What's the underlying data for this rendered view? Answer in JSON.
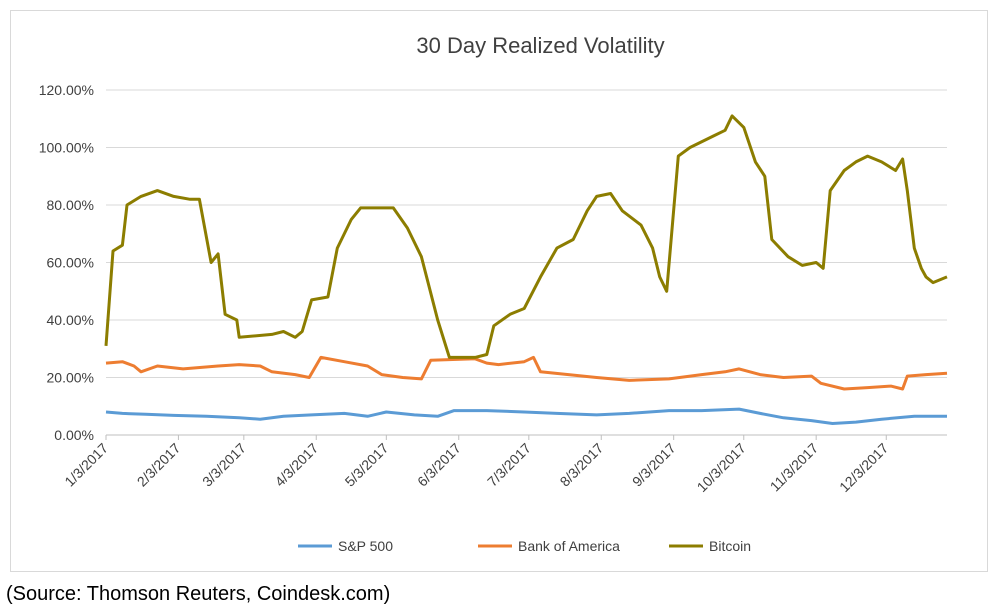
{
  "chart_data": {
    "type": "line",
    "title": "30 Day Realized Volatility",
    "xlabel": "",
    "ylabel": "",
    "ylim": [
      0,
      120
    ],
    "y_ticks": [
      0,
      20,
      40,
      60,
      80,
      100,
      120
    ],
    "y_tick_labels": [
      "0.00%",
      "20.00%",
      "40.00%",
      "60.00%",
      "80.00%",
      "100.00%",
      "120.00%"
    ],
    "x_tick_labels": [
      "1/3/2017",
      "2/3/2017",
      "3/3/2017",
      "4/3/2017",
      "5/3/2017",
      "6/3/2017",
      "7/3/2017",
      "8/3/2017",
      "9/3/2017",
      "10/3/2017",
      "11/3/2017",
      "12/3/2017"
    ],
    "xlim": [
      "2017-01-03",
      "2017-12-29"
    ],
    "grid": "horizontal",
    "legend_position": "bottom",
    "series": [
      {
        "name": "S&P 500",
        "color": "#5b9bd5",
        "points": [
          [
            "2017-01-03",
            8
          ],
          [
            "2017-01-10",
            7.5
          ],
          [
            "2017-01-20",
            7.2
          ],
          [
            "2017-02-01",
            6.8
          ],
          [
            "2017-02-15",
            6.5
          ],
          [
            "2017-03-01",
            6
          ],
          [
            "2017-03-10",
            5.5
          ],
          [
            "2017-03-20",
            6.5
          ],
          [
            "2017-04-01",
            7
          ],
          [
            "2017-04-15",
            7.5
          ],
          [
            "2017-04-25",
            6.5
          ],
          [
            "2017-05-03",
            8
          ],
          [
            "2017-05-15",
            7
          ],
          [
            "2017-05-25",
            6.5
          ],
          [
            "2017-06-01",
            8.5
          ],
          [
            "2017-06-15",
            8.5
          ],
          [
            "2017-07-01",
            8
          ],
          [
            "2017-07-15",
            7.5
          ],
          [
            "2017-08-01",
            7
          ],
          [
            "2017-08-15",
            7.5
          ],
          [
            "2017-09-01",
            8.5
          ],
          [
            "2017-09-15",
            8.5
          ],
          [
            "2017-10-01",
            9
          ],
          [
            "2017-10-10",
            7.5
          ],
          [
            "2017-10-20",
            6
          ],
          [
            "2017-11-01",
            5
          ],
          [
            "2017-11-10",
            4
          ],
          [
            "2017-11-20",
            4.5
          ],
          [
            "2017-12-01",
            5.5
          ],
          [
            "2017-12-15",
            6.5
          ],
          [
            "2017-12-29",
            6.5
          ]
        ]
      },
      {
        "name": "Bank of America",
        "color": "#ed7d31",
        "points": [
          [
            "2017-01-03",
            25
          ],
          [
            "2017-01-10",
            25.5
          ],
          [
            "2017-01-15",
            24
          ],
          [
            "2017-01-18",
            22
          ],
          [
            "2017-01-25",
            24
          ],
          [
            "2017-02-05",
            23
          ],
          [
            "2017-02-20",
            24
          ],
          [
            "2017-03-01",
            24.5
          ],
          [
            "2017-03-10",
            24
          ],
          [
            "2017-03-15",
            22
          ],
          [
            "2017-03-25",
            21
          ],
          [
            "2017-03-31",
            20
          ],
          [
            "2017-04-05",
            27
          ],
          [
            "2017-04-15",
            25.5
          ],
          [
            "2017-04-25",
            24
          ],
          [
            "2017-05-01",
            21
          ],
          [
            "2017-05-10",
            20
          ],
          [
            "2017-05-18",
            19.5
          ],
          [
            "2017-05-22",
            26
          ],
          [
            "2017-06-10",
            26.5
          ],
          [
            "2017-06-15",
            25
          ],
          [
            "2017-06-20",
            24.5
          ],
          [
            "2017-07-01",
            25.5
          ],
          [
            "2017-07-05",
            27
          ],
          [
            "2017-07-08",
            22
          ],
          [
            "2017-07-20",
            21
          ],
          [
            "2017-08-01",
            20
          ],
          [
            "2017-08-15",
            19
          ],
          [
            "2017-09-01",
            19.5
          ],
          [
            "2017-09-15",
            21
          ],
          [
            "2017-09-25",
            22
          ],
          [
            "2017-10-01",
            23
          ],
          [
            "2017-10-10",
            21
          ],
          [
            "2017-10-20",
            20
          ],
          [
            "2017-11-01",
            20.5
          ],
          [
            "2017-11-05",
            18
          ],
          [
            "2017-11-15",
            16
          ],
          [
            "2017-11-25",
            16.5
          ],
          [
            "2017-12-05",
            17
          ],
          [
            "2017-12-10",
            16
          ],
          [
            "2017-12-12",
            20.5
          ],
          [
            "2017-12-20",
            21
          ],
          [
            "2017-12-29",
            21.5
          ]
        ]
      },
      {
        "name": "Bitcoin",
        "color": "#8c7d00",
        "points": [
          [
            "2017-01-03",
            31
          ],
          [
            "2017-01-06",
            64
          ],
          [
            "2017-01-10",
            66
          ],
          [
            "2017-01-12",
            80
          ],
          [
            "2017-01-18",
            83
          ],
          [
            "2017-01-25",
            85
          ],
          [
            "2017-02-01",
            83
          ],
          [
            "2017-02-08",
            82
          ],
          [
            "2017-02-12",
            82
          ],
          [
            "2017-02-17",
            60
          ],
          [
            "2017-02-20",
            63
          ],
          [
            "2017-02-23",
            42
          ],
          [
            "2017-02-28",
            40
          ],
          [
            "2017-03-01",
            34
          ],
          [
            "2017-03-15",
            35
          ],
          [
            "2017-03-20",
            36
          ],
          [
            "2017-03-25",
            34
          ],
          [
            "2017-03-28",
            36
          ],
          [
            "2017-04-01",
            47
          ],
          [
            "2017-04-08",
            48
          ],
          [
            "2017-04-12",
            65
          ],
          [
            "2017-04-18",
            75
          ],
          [
            "2017-04-22",
            79
          ],
          [
            "2017-05-01",
            79
          ],
          [
            "2017-05-06",
            79
          ],
          [
            "2017-05-12",
            72
          ],
          [
            "2017-05-18",
            62
          ],
          [
            "2017-05-25",
            40
          ],
          [
            "2017-05-30",
            27
          ],
          [
            "2017-06-10",
            27
          ],
          [
            "2017-06-15",
            28
          ],
          [
            "2017-06-18",
            38
          ],
          [
            "2017-06-25",
            42
          ],
          [
            "2017-07-01",
            44
          ],
          [
            "2017-07-08",
            55
          ],
          [
            "2017-07-15",
            65
          ],
          [
            "2017-07-22",
            68
          ],
          [
            "2017-07-28",
            78
          ],
          [
            "2017-08-01",
            83
          ],
          [
            "2017-08-07",
            84
          ],
          [
            "2017-08-12",
            78
          ],
          [
            "2017-08-20",
            73
          ],
          [
            "2017-08-25",
            65
          ],
          [
            "2017-08-28",
            55
          ],
          [
            "2017-08-31",
            50
          ],
          [
            "2017-09-05",
            97
          ],
          [
            "2017-09-10",
            100
          ],
          [
            "2017-09-20",
            104
          ],
          [
            "2017-09-25",
            106
          ],
          [
            "2017-09-28",
            111
          ],
          [
            "2017-10-03",
            107
          ],
          [
            "2017-10-08",
            95
          ],
          [
            "2017-10-12",
            90
          ],
          [
            "2017-10-15",
            68
          ],
          [
            "2017-10-22",
            62
          ],
          [
            "2017-10-28",
            59
          ],
          [
            "2017-11-03",
            60
          ],
          [
            "2017-11-06",
            58
          ],
          [
            "2017-11-09",
            85
          ],
          [
            "2017-11-15",
            92
          ],
          [
            "2017-11-20",
            95
          ],
          [
            "2017-11-25",
            97
          ],
          [
            "2017-12-01",
            95
          ],
          [
            "2017-12-05",
            93
          ],
          [
            "2017-12-07",
            92
          ],
          [
            "2017-12-10",
            96
          ],
          [
            "2017-12-12",
            85
          ],
          [
            "2017-12-15",
            65
          ],
          [
            "2017-12-18",
            58
          ],
          [
            "2017-12-20",
            55
          ],
          [
            "2017-12-23",
            53
          ],
          [
            "2017-12-29",
            55
          ]
        ]
      }
    ]
  },
  "source_note": "(Source: Thomson Reuters, Coindesk.com)"
}
